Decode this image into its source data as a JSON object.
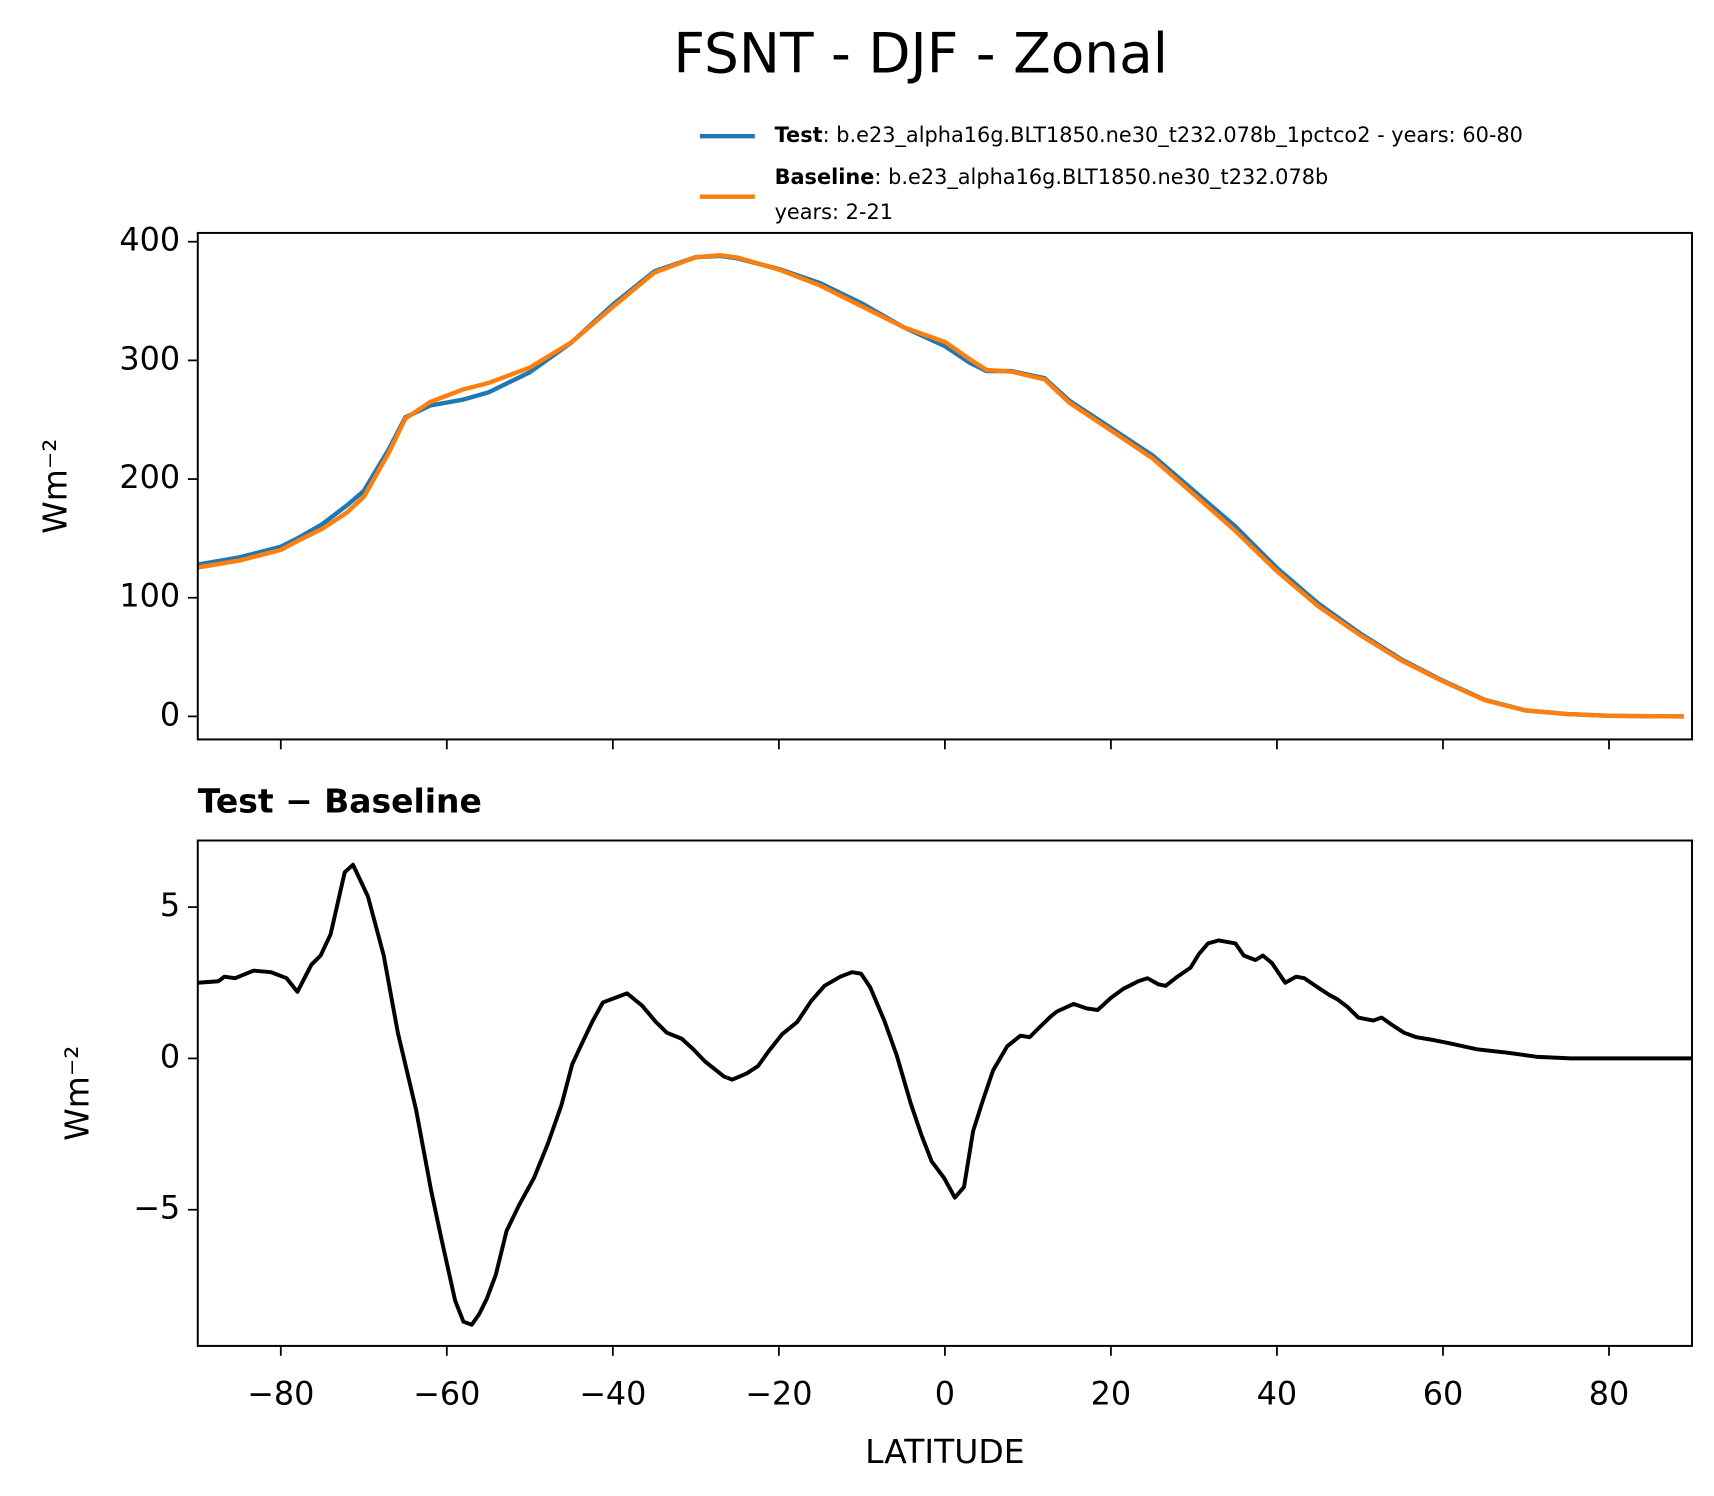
{
  "title": "FSNT - DJF - Zonal",
  "chart_data": [
    {
      "type": "line",
      "ylabel": "Wm⁻²",
      "x": [
        -90,
        -85,
        -80,
        -78,
        -75,
        -72,
        -70,
        -67,
        -65,
        -62,
        -58,
        -55,
        -50,
        -45,
        -40,
        -35,
        -30,
        -27,
        -25,
        -20,
        -15,
        -10,
        -5,
        0,
        3,
        5,
        8,
        12,
        15,
        20,
        25,
        30,
        35,
        40,
        45,
        50,
        55,
        60,
        65,
        70,
        75,
        80,
        89
      ],
      "series": [
        {
          "name": "Test",
          "label": [
            ": b.e23_alpha16g.BLT1850.ne30_t232.078b_1pctco2 - years: 60-80"
          ],
          "color": "#1f77b4",
          "values": [
            128,
            134,
            143,
            150,
            162,
            178,
            190,
            225,
            252,
            262,
            267,
            273,
            290,
            315,
            347,
            375,
            387,
            388,
            386,
            377,
            365,
            348,
            328,
            312,
            298,
            291,
            291,
            285,
            266,
            243,
            220,
            190,
            160,
            125,
            95,
            70,
            48,
            30,
            14,
            5,
            2,
            0.5,
            0
          ]
        },
        {
          "name": "Baseline",
          "label": [
            ": b.e23_alpha16g.BLT1850.ne30_t232.078b",
            "years: 2-21"
          ],
          "color": "#ff7f0e",
          "values": [
            125.5,
            131.3,
            140.3,
            147.8,
            158.1,
            172,
            185,
            222,
            251,
            265,
            275.6,
            280.9,
            294,
            315.2,
            345,
            374,
            387,
            388.6,
            386.7,
            376.5,
            363,
            345.5,
            328,
            315.5,
            301,
            292,
            290.5,
            284,
            264.3,
            241,
            217.5,
            187,
            156.2,
            122.3,
            92.7,
            68.6,
            47.1,
            29.5,
            13.7,
            4.9,
            2,
            0.5,
            0
          ]
        }
      ],
      "xlim": [
        -90,
        90
      ],
      "ylim": [
        -19.4,
        407.4
      ],
      "xticks": [
        -80,
        -60,
        -40,
        -20,
        0,
        20,
        40,
        60,
        80
      ],
      "x_tick_labels": false,
      "yticks": [
        0,
        100,
        200,
        300,
        400
      ],
      "legend": "above"
    },
    {
      "type": "line",
      "title": "Test − Baseline",
      "ylabel": "Wm⁻²",
      "xlabel": "LATITUDE",
      "color": "#000000",
      "x": [
        -90,
        -87.5,
        -86.8,
        -85.5,
        -83.3,
        -81.2,
        -79.3,
        -78,
        -76.3,
        -75.2,
        -74,
        -72.3,
        -71.3,
        -69.5,
        -67.6,
        -65.9,
        -63.7,
        -61.9,
        -60.7,
        -59,
        -58,
        -57,
        -56.1,
        -55.2,
        -54.1,
        -52.8,
        -51.3,
        -49.5,
        -47.8,
        -46.2,
        -44.9,
        -43.8,
        -42.5,
        -41.2,
        -38.3,
        -36.5,
        -34.8,
        -33.5,
        -31.7,
        -30.3,
        -28.9,
        -26.6,
        -25.6,
        -23.9,
        -22.5,
        -21.2,
        -19.6,
        -17.8,
        -16.1,
        -14.5,
        -12.6,
        -11.2,
        -10.1,
        -9,
        -7.3,
        -5.8,
        -4.1,
        -2.8,
        -1.6,
        -0.1,
        1.2,
        2.3,
        3.4,
        4.5,
        5.8,
        7.5,
        9.1,
        10.2,
        11.3,
        12.8,
        13.5,
        15.5,
        17.1,
        18.4,
        20,
        21.5,
        23.3,
        24.4,
        25.7,
        26.6,
        28,
        29.6,
        30.6,
        31.7,
        33,
        35,
        36,
        37.4,
        38.3,
        39.4,
        41,
        42.3,
        43.3,
        44.9,
        46.3,
        47.3,
        48.5,
        49.8,
        51.6,
        52.6,
        53.9,
        55.3,
        56.8,
        59,
        60.8,
        64.1,
        67.4,
        71.4,
        75.4,
        89.9
      ],
      "values": [
        2.5,
        2.55,
        2.7,
        2.65,
        2.9,
        2.85,
        2.65,
        2.2,
        3.1,
        3.4,
        4.1,
        6.15,
        6.4,
        5.35,
        3.4,
        0.85,
        -1.7,
        -4.35,
        -5.9,
        -8.0,
        -8.7,
        -8.8,
        -8.45,
        -7.95,
        -7.15,
        -5.7,
        -4.85,
        -3.95,
        -2.8,
        -1.55,
        -0.2,
        0.45,
        1.2,
        1.85,
        2.15,
        1.75,
        1.2,
        0.85,
        0.65,
        0.3,
        -0.1,
        -0.6,
        -0.7,
        -0.5,
        -0.25,
        0.25,
        0.8,
        1.2,
        1.9,
        2.4,
        2.7,
        2.85,
        2.8,
        2.35,
        1.25,
        0.1,
        -1.5,
        -2.55,
        -3.4,
        -3.95,
        -4.6,
        -4.25,
        -2.4,
        -1.45,
        -0.4,
        0.4,
        0.75,
        0.7,
        1.0,
        1.4,
        1.55,
        1.8,
        1.65,
        1.6,
        2.0,
        2.3,
        2.55,
        2.65,
        2.45,
        2.4,
        2.7,
        3.0,
        3.45,
        3.8,
        3.9,
        3.8,
        3.4,
        3.25,
        3.4,
        3.15,
        2.5,
        2.7,
        2.65,
        2.35,
        2.1,
        1.95,
        1.7,
        1.35,
        1.25,
        1.35,
        1.1,
        0.85,
        0.7,
        0.6,
        0.5,
        0.3,
        0.2,
        0.05,
        0,
        0
      ],
      "xlim": [
        -90,
        90
      ],
      "ylim": [
        -9.5,
        7.2
      ],
      "xticks": [
        {
          "value": -80,
          "label": "−80"
        },
        {
          "value": -60,
          "label": "−60"
        },
        {
          "value": -40,
          "label": "−40"
        },
        {
          "value": -20,
          "label": "−20"
        },
        0,
        20,
        40,
        60,
        80
      ],
      "yticks": [
        {
          "value": -5,
          "label": "−5"
        },
        0,
        5
      ]
    }
  ]
}
